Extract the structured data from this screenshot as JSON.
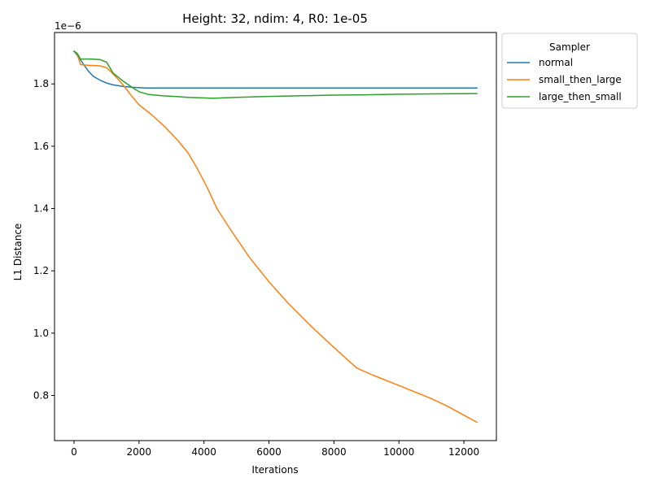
{
  "chart_data": {
    "type": "line",
    "title": "Height: 32, ndim: 4, R0: 1e-05",
    "xlabel": "Iterations",
    "ylabel": "L1 Distance",
    "offset_label": "1e−6",
    "xlim": [
      -600,
      13000
    ],
    "ylim": [
      0.655,
      1.965
    ],
    "xticks": [
      0,
      2000,
      4000,
      6000,
      8000,
      10000,
      12000
    ],
    "xtick_labels": [
      "0",
      "2000",
      "4000",
      "6000",
      "8000",
      "10000",
      "12000"
    ],
    "yticks": [
      0.8,
      1.0,
      1.2,
      1.4,
      1.6,
      1.8
    ],
    "ytick_labels": [
      "0.8",
      "1.0",
      "1.2",
      "1.4",
      "1.6",
      "1.8"
    ],
    "grid": false,
    "legend": {
      "title": "Sampler",
      "placement": "outside upper right"
    },
    "series": [
      {
        "name": "normal",
        "color": "#1f77b4",
        "x": [
          0,
          150,
          300,
          450,
          600,
          800,
          1000,
          1200,
          1500,
          1800,
          2200,
          3000,
          5000,
          8000,
          12400
        ],
        "y": [
          1.905,
          1.885,
          1.862,
          1.84,
          1.824,
          1.812,
          1.803,
          1.797,
          1.792,
          1.789,
          1.787,
          1.787,
          1.787,
          1.787,
          1.787
        ]
      },
      {
        "name": "small_then_large",
        "color": "#ff7f0e",
        "x": [
          0,
          100,
          200,
          400,
          800,
          1000,
          1100,
          1200,
          1400,
          1600,
          1800,
          2000,
          2400,
          2800,
          3200,
          3500,
          3800,
          4100,
          4400,
          4800,
          5400,
          6000,
          6600,
          7300,
          8000,
          8700,
          9200,
          10000,
          11000,
          11500,
          12400
        ],
        "y": [
          1.905,
          1.895,
          1.862,
          1.86,
          1.858,
          1.852,
          1.843,
          1.832,
          1.81,
          1.785,
          1.758,
          1.733,
          1.7,
          1.662,
          1.618,
          1.58,
          1.527,
          1.467,
          1.4,
          1.335,
          1.243,
          1.165,
          1.095,
          1.022,
          0.954,
          0.888,
          0.865,
          0.832,
          0.79,
          0.765,
          0.714
        ]
      },
      {
        "name": "large_then_small",
        "color": "#2ca02c",
        "x": [
          0,
          100,
          200,
          500,
          800,
          1000,
          1200,
          1500,
          1800,
          2000,
          2300,
          2700,
          3200,
          3500,
          4000,
          4300,
          5000,
          6000,
          7000,
          8000,
          9000,
          10000,
          11000,
          12400
        ],
        "y": [
          1.905,
          1.898,
          1.88,
          1.88,
          1.878,
          1.87,
          1.835,
          1.81,
          1.788,
          1.775,
          1.766,
          1.762,
          1.759,
          1.757,
          1.755,
          1.754,
          1.757,
          1.76,
          1.762,
          1.764,
          1.765,
          1.767,
          1.768,
          1.769
        ]
      }
    ]
  }
}
